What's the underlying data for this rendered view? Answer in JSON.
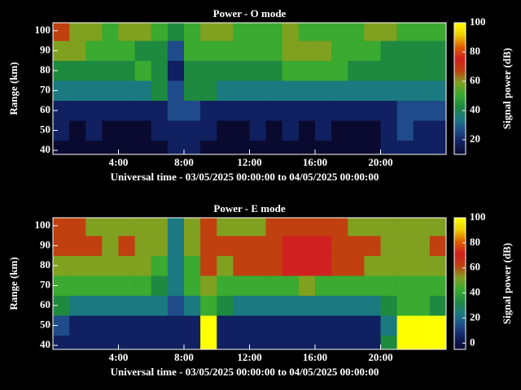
{
  "chart_data": [
    {
      "type": "heatmap",
      "title": "Power - O mode",
      "xlabel": "Universal time - 03/05/2025 00:00:00 to 04/05/2025 00:00:00",
      "ylabel": "Range (km)",
      "colorbar_label": "Signal power (dB)",
      "x": [
        0.5,
        1.5,
        2.5,
        3.5,
        4.5,
        5.5,
        6.5,
        7.5,
        8.5,
        9.5,
        10.5,
        11.5,
        12.5,
        13.5,
        14.5,
        15.5,
        16.5,
        17.5,
        18.5,
        19.5,
        20.5,
        21.5,
        22.5,
        23.5
      ],
      "y": [
        40,
        50,
        60,
        70,
        80,
        90,
        100
      ],
      "values": [
        [
          14,
          13,
          14,
          13,
          12,
          13,
          14,
          15,
          16,
          14,
          13,
          13,
          14,
          13,
          14,
          13,
          14,
          13,
          14,
          13,
          15,
          20,
          18,
          17
        ],
        [
          15,
          14,
          15,
          14,
          13,
          14,
          15,
          17,
          18,
          15,
          14,
          14,
          15,
          14,
          15,
          14,
          15,
          14,
          14,
          14,
          16,
          24,
          22,
          20
        ],
        [
          22,
          18,
          17,
          16,
          16,
          18,
          20,
          25,
          26,
          22,
          19,
          18,
          18,
          17,
          18,
          17,
          18,
          17,
          17,
          18,
          22,
          30,
          28,
          26
        ],
        [
          35,
          33,
          32,
          34,
          36,
          38,
          40,
          30,
          42,
          40,
          34,
          33,
          33,
          32,
          33,
          34,
          35,
          34,
          33,
          32,
          34,
          38,
          37,
          36
        ],
        [
          46,
          44,
          45,
          44,
          46,
          47,
          45,
          20,
          45,
          46,
          45,
          44,
          45,
          46,
          47,
          50,
          48,
          47,
          46,
          45,
          44,
          42,
          44,
          43
        ],
        [
          58,
          56,
          52,
          48,
          47,
          46,
          44,
          30,
          48,
          50,
          52,
          50,
          52,
          54,
          58,
          60,
          58,
          54,
          50,
          48,
          46,
          42,
          46,
          44
        ],
        [
          70,
          62,
          58,
          54,
          56,
          55,
          52,
          40,
          54,
          56,
          58,
          52,
          50,
          52,
          55,
          54,
          52,
          50,
          52,
          60,
          58,
          50,
          48,
          52
        ]
      ],
      "xlim": [
        0,
        24
      ],
      "ylim": [
        38,
        104
      ],
      "xticks": [
        {
          "value": 4,
          "label": "4:00"
        },
        {
          "value": 8,
          "label": "8:00"
        },
        {
          "value": 12,
          "label": "12:00"
        },
        {
          "value": 16,
          "label": "16:00"
        },
        {
          "value": 20,
          "label": "20:00"
        }
      ],
      "yticks": [
        40,
        50,
        60,
        70,
        80,
        90,
        100
      ],
      "zlim": [
        10,
        100
      ],
      "zticks": [
        20,
        40,
        60,
        80,
        100
      ],
      "colormap": [
        "#0a0a30",
        "#102060",
        "#1f4b8a",
        "#1a7a80",
        "#1e8a40",
        "#3aaa30",
        "#80a020",
        "#c04010",
        "#d02020",
        "#e06000",
        "#f0d000",
        "#ffff00"
      ]
    },
    {
      "type": "heatmap",
      "title": "Power - E mode",
      "xlabel": "Universal time - 03/05/2025 00:00:00 to 04/05/2025 00:00:00",
      "ylabel": "Range (km)",
      "colorbar_label": "Signal power (dB)",
      "x": [
        0.5,
        1.5,
        2.5,
        3.5,
        4.5,
        5.5,
        6.5,
        7.5,
        8.5,
        9.5,
        10.5,
        11.5,
        12.5,
        13.5,
        14.5,
        15.5,
        16.5,
        17.5,
        18.5,
        19.5,
        20.5,
        21.5,
        22.5,
        23.5
      ],
      "y": [
        40,
        50,
        60,
        70,
        80,
        90,
        100
      ],
      "values": [
        [
          8,
          6,
          8,
          6,
          5,
          7,
          6,
          5,
          6,
          100,
          6,
          5,
          5,
          6,
          5,
          6,
          6,
          5,
          6,
          5,
          30,
          100,
          100,
          100
        ],
        [
          10,
          8,
          9,
          8,
          8,
          9,
          8,
          7,
          8,
          100,
          9,
          8,
          8,
          9,
          8,
          8,
          9,
          8,
          8,
          9,
          25,
          100,
          100,
          100
        ],
        [
          30,
          28,
          27,
          28,
          26,
          28,
          22,
          18,
          24,
          40,
          30,
          26,
          25,
          26,
          27,
          28,
          28,
          27,
          26,
          25,
          30,
          38,
          40,
          36
        ],
        [
          44,
          42,
          40,
          42,
          44,
          40,
          36,
          20,
          40,
          48,
          46,
          42,
          42,
          44,
          46,
          48,
          47,
          46,
          44,
          42,
          44,
          46,
          45,
          44
        ],
        [
          55,
          52,
          50,
          52,
          54,
          50,
          44,
          22,
          46,
          58,
          56,
          60,
          65,
          66,
          68,
          70,
          68,
          64,
          60,
          56,
          52,
          50,
          52,
          55
        ],
        [
          62,
          60,
          58,
          56,
          58,
          56,
          48,
          24,
          50,
          62,
          60,
          62,
          64,
          66,
          70,
          72,
          70,
          66,
          62,
          58,
          54,
          50,
          56,
          60
        ],
        [
          60,
          58,
          55,
          54,
          56,
          55,
          50,
          28,
          50,
          58,
          56,
          56,
          55,
          58,
          60,
          62,
          60,
          58,
          56,
          54,
          52,
          48,
          52,
          56
        ]
      ],
      "xlim": [
        0,
        24
      ],
      "ylim": [
        38,
        104
      ],
      "xticks": [
        {
          "value": 4,
          "label": "4:00"
        },
        {
          "value": 8,
          "label": "8:00"
        },
        {
          "value": 12,
          "label": "12:00"
        },
        {
          "value": 16,
          "label": "16:00"
        },
        {
          "value": 20,
          "label": "20:00"
        }
      ],
      "yticks": [
        40,
        50,
        60,
        70,
        80,
        90,
        100
      ],
      "zlim": [
        -5,
        100
      ],
      "zticks": [
        0,
        20,
        40,
        60,
        80,
        100
      ],
      "colormap": [
        "#0a0a30",
        "#102060",
        "#1f4b8a",
        "#1a7a80",
        "#1e8a40",
        "#3aaa30",
        "#80a020",
        "#c04010",
        "#d02020",
        "#e06000",
        "#f0d000",
        "#ffff00"
      ]
    }
  ]
}
